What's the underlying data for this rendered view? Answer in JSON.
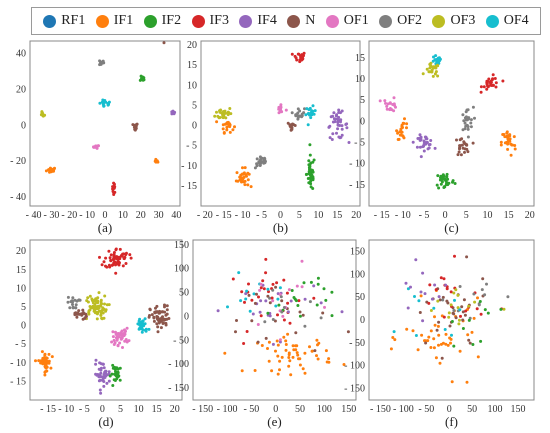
{
  "legend": {
    "entries": [
      {
        "label": "RF1",
        "color": "#1f77b4"
      },
      {
        "label": "IF1",
        "color": "#ff7f0e"
      },
      {
        "label": "IF2",
        "color": "#2ca02c"
      },
      {
        "label": "IF3",
        "color": "#d62728"
      },
      {
        "label": "IF4",
        "color": "#9467bd"
      },
      {
        "label": "N",
        "color": "#8c564b"
      },
      {
        "label": "OF1",
        "color": "#e377c2"
      },
      {
        "label": "OF2",
        "color": "#7f7f7f"
      },
      {
        "label": "OF3",
        "color": "#bcbd22"
      },
      {
        "label": "OF4",
        "color": "#17becf"
      }
    ]
  },
  "chart_data": [
    {
      "type": "scatter",
      "panel_label": "(a)",
      "xlim": [
        -42,
        42
      ],
      "ylim": [
        -45,
        47
      ],
      "xticks": [
        -40,
        -30,
        -20,
        -10,
        0,
        10,
        20,
        30,
        40
      ],
      "xtick_labels": [
        "- 40",
        "- 30",
        "- 20",
        "- 10",
        "0",
        "10",
        "20",
        "30",
        "40"
      ],
      "yticks": [
        -40,
        -20,
        0,
        20,
        40
      ],
      "ytick_labels": [
        "- 40",
        "- 20",
        "0",
        "20",
        "40"
      ],
      "grid": false,
      "clusters": [
        {
          "series": "IF1",
          "center": [
            -30,
            -25
          ],
          "spread": [
            2.5,
            1.5
          ],
          "n": 18
        },
        {
          "series": "IF3",
          "center": [
            5,
            -35
          ],
          "spread": [
            0.8,
            2.5
          ],
          "n": 14
        },
        {
          "series": "IF1",
          "center": [
            29,
            -20
          ],
          "spread": [
            0.8,
            1.2
          ],
          "n": 8
        },
        {
          "series": "OF1",
          "center": [
            -5,
            -12
          ],
          "spread": [
            1.5,
            0.8
          ],
          "n": 10
        },
        {
          "series": "N",
          "center": [
            17,
            -1
          ],
          "spread": [
            1.2,
            2
          ],
          "n": 12
        },
        {
          "series": "IF4",
          "center": [
            38,
            7
          ],
          "spread": [
            1,
            1
          ],
          "n": 10
        },
        {
          "series": "OF3",
          "center": [
            -35,
            6
          ],
          "spread": [
            1,
            1.2
          ],
          "n": 10
        },
        {
          "series": "OF4",
          "center": [
            0,
            12
          ],
          "spread": [
            3,
            2
          ],
          "n": 16
        },
        {
          "series": "IF2",
          "center": [
            21,
            26
          ],
          "spread": [
            1.2,
            1.2
          ],
          "n": 10
        },
        {
          "series": "OF2",
          "center": [
            -2,
            35
          ],
          "spread": [
            1.2,
            1.5
          ],
          "n": 12
        },
        {
          "series": "N",
          "center": [
            33,
            46
          ],
          "spread": [
            0.2,
            0.2
          ],
          "n": 1
        }
      ]
    },
    {
      "type": "scatter",
      "panel_label": "(b)",
      "xlim": [
        -21,
        21
      ],
      "ylim": [
        -20,
        21
      ],
      "xticks": [
        -20,
        -15,
        -10,
        -5,
        0,
        5,
        10,
        15,
        20
      ],
      "xtick_labels": [
        "- 20",
        "- 15",
        "- 10",
        "- 5",
        "0",
        "5",
        "10",
        "15",
        "20"
      ],
      "yticks": [
        -15,
        -10,
        -5,
        0,
        5,
        10,
        15,
        20
      ],
      "ytick_labels": [
        "- 15",
        "- 10",
        "- 5",
        "0",
        "5",
        "10",
        "15",
        "20"
      ],
      "grid": false,
      "clusters": [
        {
          "series": "IF3",
          "center": [
            5,
            17
          ],
          "spread": [
            1.5,
            1.2
          ],
          "n": 22
        },
        {
          "series": "OF3",
          "center": [
            -15,
            3
          ],
          "spread": [
            2,
            1.5
          ],
          "n": 30
        },
        {
          "series": "IF1",
          "center": [
            -14,
            0
          ],
          "spread": [
            1.5,
            1.5
          ],
          "n": 20
        },
        {
          "series": "IF1",
          "center": [
            -10,
            -13
          ],
          "spread": [
            1.5,
            2
          ],
          "n": 30
        },
        {
          "series": "OF1",
          "center": [
            0,
            4
          ],
          "spread": [
            1,
            1.2
          ],
          "n": 14
        },
        {
          "series": "OF2",
          "center": [
            5,
            3
          ],
          "spread": [
            1.2,
            1.2
          ],
          "n": 18
        },
        {
          "series": "OF4",
          "center": [
            8,
            3
          ],
          "spread": [
            1.2,
            1.5
          ],
          "n": 18
        },
        {
          "series": "N",
          "center": [
            3,
            0
          ],
          "spread": [
            1,
            0.8
          ],
          "n": 14
        },
        {
          "series": "IF4",
          "center": [
            15,
            0
          ],
          "spread": [
            2.5,
            3
          ],
          "n": 40
        },
        {
          "series": "OF2",
          "center": [
            -5,
            -9
          ],
          "spread": [
            1.5,
            1.5
          ],
          "n": 26
        },
        {
          "series": "IF2",
          "center": [
            8,
            -12
          ],
          "spread": [
            1,
            4
          ],
          "n": 40
        }
      ]
    },
    {
      "type": "scatter",
      "panel_label": "(c)",
      "xlim": [
        -18,
        21
      ],
      "ylim": [
        -20,
        19
      ],
      "xticks": [
        -15,
        -10,
        -5,
        0,
        5,
        10,
        15,
        20
      ],
      "xtick_labels": [
        "- 15",
        "- 10",
        "- 5",
        "0",
        "5",
        "10",
        "15",
        "20"
      ],
      "yticks": [
        -15,
        -10,
        -5,
        0,
        5,
        10,
        15
      ],
      "ytick_labels": [
        "- 15",
        "- 10",
        "- 5",
        "0",
        "5",
        "10",
        "15"
      ],
      "grid": false,
      "clusters": [
        {
          "series": "OF4",
          "center": [
            -2,
            14
          ],
          "spread": [
            1,
            1.5
          ],
          "n": 20
        },
        {
          "series": "OF3",
          "center": [
            -3,
            12
          ],
          "spread": [
            1.5,
            1.5
          ],
          "n": 22
        },
        {
          "series": "IF3",
          "center": [
            11,
            9
          ],
          "spread": [
            2,
            1.5
          ],
          "n": 28
        },
        {
          "series": "OF1",
          "center": [
            -13,
            4
          ],
          "spread": [
            1.5,
            1.5
          ],
          "n": 18
        },
        {
          "series": "IF1",
          "center": [
            -10,
            -2
          ],
          "spread": [
            1.2,
            2
          ],
          "n": 22
        },
        {
          "series": "IF4",
          "center": [
            -5,
            -5
          ],
          "spread": [
            2,
            1.5
          ],
          "n": 34
        },
        {
          "series": "N",
          "center": [
            4,
            -6
          ],
          "spread": [
            1.5,
            2
          ],
          "n": 24
        },
        {
          "series": "OF2",
          "center": [
            5,
            0
          ],
          "spread": [
            1.5,
            3
          ],
          "n": 26
        },
        {
          "series": "IF1",
          "center": [
            15,
            -5
          ],
          "spread": [
            1.5,
            3
          ],
          "n": 34
        },
        {
          "series": "IF2",
          "center": [
            0,
            -14
          ],
          "spread": [
            2,
            2
          ],
          "n": 34
        }
      ]
    },
    {
      "type": "scatter",
      "panel_label": "(d)",
      "xlim": [
        -20,
        22
      ],
      "ylim": [
        -20,
        23
      ],
      "xticks": [
        -15,
        -10,
        -5,
        0,
        5,
        10,
        15,
        20
      ],
      "xtick_labels": [
        "- 15",
        "- 10",
        "- 5",
        "0",
        "5",
        "10",
        "15",
        "20"
      ],
      "yticks": [
        -15,
        -10,
        -5,
        0,
        5,
        10,
        15,
        20
      ],
      "ytick_labels": [
        "- 15",
        "- 10",
        "- 5",
        "0",
        "5",
        "10",
        "15",
        "20"
      ],
      "grid": false,
      "clusters": [
        {
          "series": "IF3",
          "center": [
            4,
            18
          ],
          "spread": [
            3,
            2.5
          ],
          "n": 60
        },
        {
          "series": "OF3",
          "center": [
            -2,
            5
          ],
          "spread": [
            3,
            3
          ],
          "n": 70
        },
        {
          "series": "OF2",
          "center": [
            -8,
            6
          ],
          "spread": [
            1.5,
            1.5
          ],
          "n": 18
        },
        {
          "series": "N",
          "center": [
            -6,
            3
          ],
          "spread": [
            1.5,
            1.5
          ],
          "n": 20
        },
        {
          "series": "N",
          "center": [
            16,
            2
          ],
          "spread": [
            2.5,
            3
          ],
          "n": 60
        },
        {
          "series": "OF4",
          "center": [
            11,
            0
          ],
          "spread": [
            1.5,
            2
          ],
          "n": 30
        },
        {
          "series": "OF1",
          "center": [
            5,
            -3
          ],
          "spread": [
            2,
            2
          ],
          "n": 40
        },
        {
          "series": "IF1",
          "center": [
            -16,
            -10
          ],
          "spread": [
            1.5,
            2.5
          ],
          "n": 40
        },
        {
          "series": "IF4",
          "center": [
            0,
            -13
          ],
          "spread": [
            2,
            3
          ],
          "n": 40
        },
        {
          "series": "IF2",
          "center": [
            4,
            -13
          ],
          "spread": [
            1.5,
            2
          ],
          "n": 30
        }
      ]
    },
    {
      "type": "scatter",
      "panel_label": "(e)",
      "xlim": [
        -170,
        165
      ],
      "ylim": [
        -175,
        160
      ],
      "xticks": [
        -150,
        -100,
        -50,
        0,
        50,
        100,
        150
      ],
      "xtick_labels": [
        "- 150",
        "- 100",
        "- 50",
        "0",
        "50",
        "100",
        "150"
      ],
      "yticks": [
        -150,
        -100,
        -50,
        0,
        50,
        100,
        150
      ],
      "ytick_labels": [
        "- 150",
        "- 100",
        "- 50",
        "0",
        "50",
        "100",
        "150"
      ],
      "grid": false,
      "clusters": [
        {
          "series": "IF1",
          "center": [
            40,
            -80
          ],
          "spread": [
            70,
            35
          ],
          "n": 55
        },
        {
          "series": "IF3",
          "center": [
            -10,
            40
          ],
          "spread": [
            80,
            60
          ],
          "n": 30
        },
        {
          "series": "IF4",
          "center": [
            0,
            20
          ],
          "spread": [
            90,
            60
          ],
          "n": 22
        },
        {
          "series": "IF2",
          "center": [
            50,
            40
          ],
          "spread": [
            60,
            50
          ],
          "n": 18
        },
        {
          "series": "OF4",
          "center": [
            -40,
            30
          ],
          "spread": [
            60,
            50
          ],
          "n": 12
        },
        {
          "series": "N",
          "center": [
            0,
            0
          ],
          "spread": [
            100,
            80
          ],
          "n": 20
        },
        {
          "series": "OF1",
          "center": [
            10,
            30
          ],
          "spread": [
            70,
            60
          ],
          "n": 14
        },
        {
          "series": "OF2",
          "center": [
            20,
            20
          ],
          "spread": [
            80,
            60
          ],
          "n": 10
        }
      ]
    },
    {
      "type": "scatter",
      "panel_label": "(f)",
      "xlim": [
        -175,
        185
      ],
      "ylim": [
        -175,
        175
      ],
      "xticks": [
        -150,
        -100,
        -50,
        0,
        50,
        100,
        150
      ],
      "xtick_labels": [
        "- 150",
        "- 100",
        "- 50",
        "0",
        "50",
        "100",
        "150"
      ],
      "yticks": [
        -150,
        -100,
        -50,
        0,
        50,
        100,
        150
      ],
      "ytick_labels": [
        "- 150",
        "- 100",
        "- 50",
        "0",
        "50",
        "100",
        "150"
      ],
      "grid": false,
      "clusters": [
        {
          "series": "IF1",
          "center": [
            -10,
            -40
          ],
          "spread": [
            80,
            70
          ],
          "n": 45
        },
        {
          "series": "N",
          "center": [
            0,
            10
          ],
          "spread": [
            80,
            80
          ],
          "n": 30
        },
        {
          "series": "IF3",
          "center": [
            0,
            40
          ],
          "spread": [
            70,
            70
          ],
          "n": 20
        },
        {
          "series": "OF3",
          "center": [
            20,
            30
          ],
          "spread": [
            80,
            60
          ],
          "n": 14
        },
        {
          "series": "OF2",
          "center": [
            60,
            50
          ],
          "spread": [
            60,
            60
          ],
          "n": 12
        },
        {
          "series": "OF4",
          "center": [
            -40,
            0
          ],
          "spread": [
            60,
            50
          ],
          "n": 10
        },
        {
          "series": "IF4",
          "center": [
            -60,
            60
          ],
          "spread": [
            50,
            50
          ],
          "n": 12
        },
        {
          "series": "IF2",
          "center": [
            40,
            0
          ],
          "spread": [
            60,
            50
          ],
          "n": 10
        }
      ]
    }
  ]
}
